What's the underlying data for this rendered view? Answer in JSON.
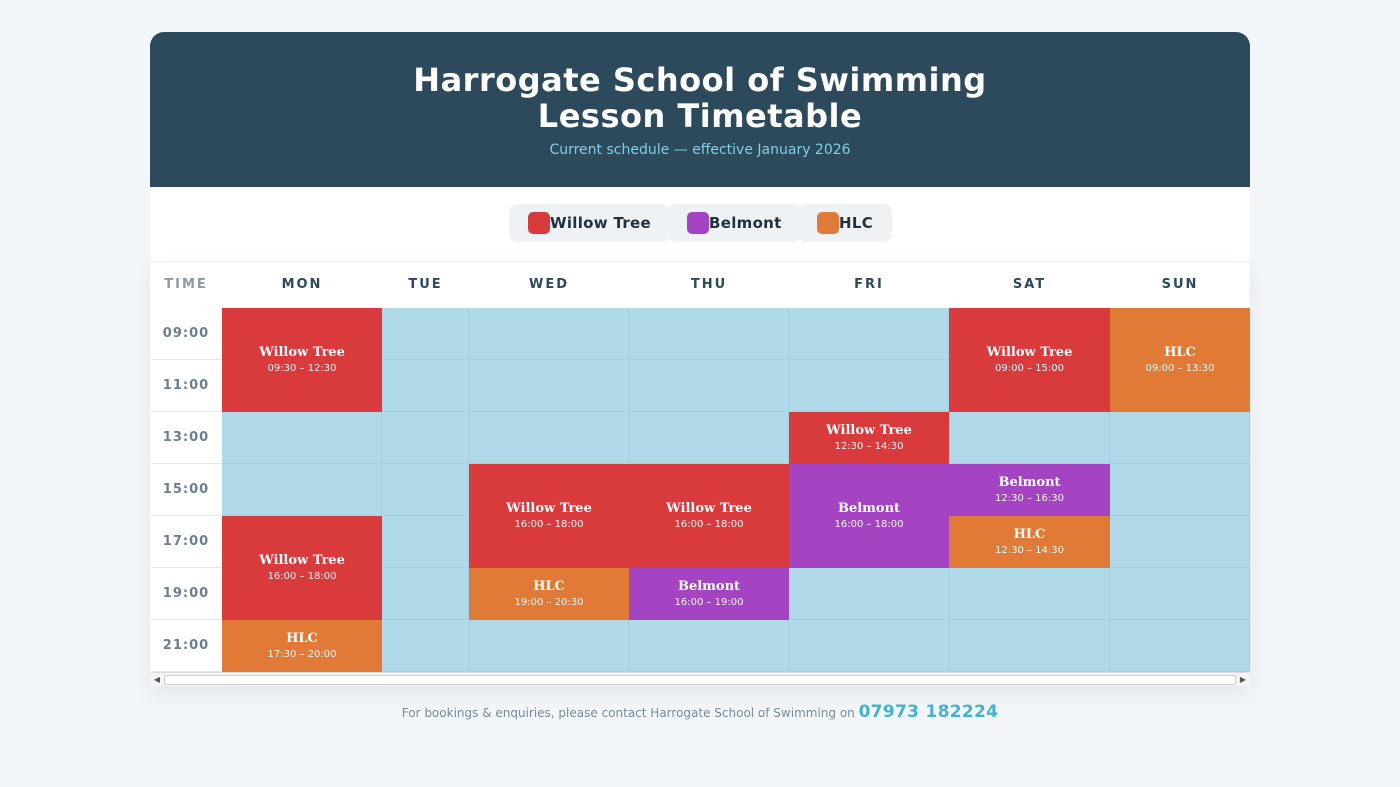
{
  "header": {
    "title_line1": "Harrogate School of Swimming",
    "title_line2": "Lesson Timetable",
    "subtitle": "Current schedule — effective January 2026"
  },
  "legend": [
    {
      "label": "Willow Tree",
      "color": "#d93a3c"
    },
    {
      "label": "Belmont",
      "color": "#a444c2"
    },
    {
      "label": "HLC",
      "color": "#e07a36"
    }
  ],
  "table": {
    "time_header": "TIME",
    "days": [
      "MON",
      "TUE",
      "WED",
      "THU",
      "FRI",
      "SAT",
      "SUN"
    ],
    "times": [
      "09:00",
      "11:00",
      "13:00",
      "15:00",
      "17:00",
      "19:00",
      "21:00"
    ],
    "lessons": [
      {
        "day": "MON",
        "start_row": 0,
        "rows": 2,
        "venue": "Willow Tree",
        "time": "09:30 – 12:30"
      },
      {
        "day": "MON",
        "start_row": 4,
        "rows": 2,
        "venue": "Willow Tree",
        "time": "16:00 – 18:00"
      },
      {
        "day": "MON",
        "start_row": 6,
        "rows": 1,
        "venue": "HLC",
        "time": "17:30 – 20:00"
      },
      {
        "day": "WED",
        "start_row": 3,
        "rows": 2,
        "venue": "Willow Tree",
        "time": "16:00 – 18:00"
      },
      {
        "day": "WED",
        "start_row": 5,
        "rows": 1,
        "venue": "HLC",
        "time": "19:00 – 20:30"
      },
      {
        "day": "THU",
        "start_row": 3,
        "rows": 2,
        "venue": "Willow Tree",
        "time": "16:00 – 18:00"
      },
      {
        "day": "THU",
        "start_row": 5,
        "rows": 1,
        "venue": "Belmont",
        "time": "16:00 – 19:00"
      },
      {
        "day": "FRI",
        "start_row": 2,
        "rows": 1,
        "venue": "Willow Tree",
        "time": "12:30 – 14:30"
      },
      {
        "day": "FRI",
        "start_row": 3,
        "rows": 2,
        "venue": "Belmont",
        "time": "16:00 – 18:00"
      },
      {
        "day": "SAT",
        "start_row": 0,
        "rows": 2,
        "venue": "Willow Tree",
        "time": "09:00 – 15:00"
      },
      {
        "day": "SAT",
        "start_row": 3,
        "rows": 1,
        "venue": "Belmont",
        "time": "12:30 – 16:30"
      },
      {
        "day": "SAT",
        "start_row": 4,
        "rows": 1,
        "venue": "HLC",
        "time": "12:30 – 14:30"
      },
      {
        "day": "SUN",
        "start_row": 0,
        "rows": 2,
        "venue": "HLC",
        "time": "09:00 – 13:30"
      }
    ]
  },
  "footer": {
    "text": "For bookings & enquiries, please contact Harrogate School of Swimming on",
    "phone": "07973 182224"
  },
  "colors": {
    "header_bg": "#2d4a5c",
    "empty_slot": "#b0dae9",
    "accent": "#45b2cf"
  }
}
